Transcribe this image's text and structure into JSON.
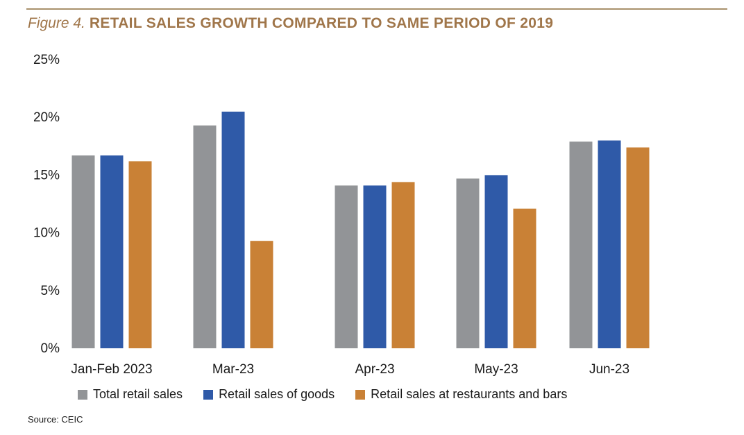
{
  "title": {
    "figure_label": "Figure 4.",
    "main": "RETAIL SALES GROWTH COMPARED TO SAME PERIOD OF 2019"
  },
  "source": "Source: CEIC",
  "chart_data": {
    "type": "bar",
    "title": "RETAIL SALES GROWTH COMPARED TO SAME PERIOD OF 2019",
    "xlabel": "",
    "ylabel": "",
    "categories": [
      "Jan-Feb 2023",
      "Mar-23",
      "Apr-23",
      "May-23",
      "Jun-23"
    ],
    "series": [
      {
        "name": "Total retail sales",
        "color": "#929497",
        "values": [
          16.7,
          19.3,
          14.1,
          14.7,
          17.9
        ]
      },
      {
        "name": "Retail sales of goods",
        "color": "#2f5aa8",
        "values": [
          16.7,
          20.5,
          14.1,
          15.0,
          18.0
        ]
      },
      {
        "name": "Retail sales at restaurants and bars",
        "color": "#c98136",
        "values": [
          16.2,
          9.3,
          14.4,
          12.1,
          17.4
        ]
      }
    ],
    "ylim": [
      0,
      25
    ],
    "yticks": [
      0,
      5,
      10,
      15,
      20,
      25
    ],
    "ytick_labels": [
      "0%",
      "5%",
      "10%",
      "15%",
      "20%",
      "25%"
    ],
    "grid": false,
    "legend_position": "bottom"
  }
}
